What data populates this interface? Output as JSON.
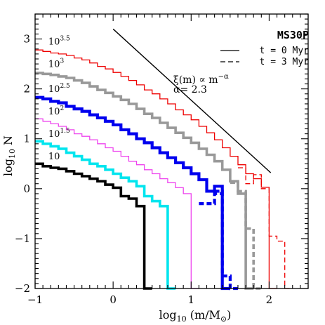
{
  "chart_data": {
    "type": "line",
    "title": "MS30P",
    "xlabel_main": "log",
    "xlabel_sub": "10",
    "xlabel_rest": " (m/M",
    "xlabel_sun": "⊙",
    "xlabel_close": ")",
    "ylabel_main": "log",
    "ylabel_sub": "10",
    "ylabel_rest": " N",
    "xlim": [
      -1,
      2.5
    ],
    "ylim": [
      -2,
      3.5
    ],
    "xticks": [
      -1,
      0,
      1,
      2
    ],
    "yticks": [
      -2,
      -1,
      0,
      1,
      2,
      3
    ],
    "xtick_labels": [
      "−1",
      "0",
      "1",
      "2"
    ],
    "ytick_labels": [
      "−2",
      "−1",
      "0",
      "1",
      "2",
      "3"
    ],
    "legend": {
      "solid_label": "t = 0 Myr",
      "dashed_label": "t = 3 Myr",
      "placement": "top-right"
    },
    "annotation": {
      "line1_xi": "ξ(m) ∝ m",
      "line1_exp": "−α",
      "line2": "α= 2.3",
      "slope_line": {
        "x": [
          0,
          2.02
        ],
        "y": [
          3.2,
          0.32
        ]
      }
    },
    "series": [
      {
        "name": "10",
        "sup": "",
        "color": "#000000",
        "width": 3.6,
        "x": [
          -1,
          -0.9,
          -0.8,
          -0.7,
          -0.6,
          -0.5,
          -0.4,
          -0.3,
          -0.2,
          -0.1,
          0,
          0.1,
          0.2,
          0.3,
          0.4
        ],
        "y": [
          0.5,
          0.45,
          0.42,
          0.4,
          0.35,
          0.3,
          0.25,
          0.2,
          0.15,
          0.08,
          0.02,
          -0.15,
          -0.2,
          -0.35,
          -2
        ]
      },
      {
        "name": "10",
        "sup": "1.5",
        "color": "#00e5ee",
        "width": 3.6,
        "x": [
          -1,
          -0.9,
          -0.8,
          -0.7,
          -0.6,
          -0.5,
          -0.4,
          -0.3,
          -0.2,
          -0.1,
          0,
          0.1,
          0.2,
          0.3,
          0.4,
          0.5,
          0.6,
          0.7
        ],
        "y": [
          0.95,
          0.9,
          0.85,
          0.8,
          0.72,
          0.65,
          0.58,
          0.5,
          0.45,
          0.38,
          0.3,
          0.22,
          0.15,
          0.05,
          -0.15,
          -0.25,
          -0.35,
          -2
        ]
      },
      {
        "name": "10",
        "sup": "2",
        "color": "#ee44ee",
        "width": 1.3,
        "x": [
          -1,
          -0.9,
          -0.8,
          -0.7,
          -0.6,
          -0.5,
          -0.4,
          -0.3,
          -0.2,
          -0.1,
          0,
          0.1,
          0.2,
          0.3,
          0.4,
          0.5,
          0.6,
          0.7,
          0.8,
          0.9,
          1.0
        ],
        "y": [
          1.4,
          1.35,
          1.3,
          1.25,
          1.18,
          1.1,
          1.05,
          0.98,
          0.9,
          0.82,
          0.75,
          0.65,
          0.55,
          0.48,
          0.38,
          0.3,
          0.2,
          0.12,
          0.02,
          -0.1,
          -2
        ]
      },
      {
        "name": "10",
        "sup": "2.5",
        "color": "#0000ee",
        "width": 4.2,
        "x": [
          -1,
          -0.9,
          -0.8,
          -0.7,
          -0.6,
          -0.5,
          -0.4,
          -0.3,
          -0.2,
          -0.1,
          0,
          0.1,
          0.2,
          0.3,
          0.4,
          0.5,
          0.6,
          0.7,
          0.8,
          0.9,
          1.0,
          1.1,
          1.2,
          1.3,
          1.4
        ],
        "y": [
          1.83,
          1.8,
          1.75,
          1.72,
          1.65,
          1.6,
          1.55,
          1.48,
          1.42,
          1.35,
          1.28,
          1.18,
          1.1,
          1.0,
          0.92,
          0.82,
          0.72,
          0.62,
          0.52,
          0.42,
          0.3,
          0.18,
          -0.05,
          0.05,
          -2
        ]
      },
      {
        "name": "10",
        "sup": "3",
        "color": "#999999",
        "width": 3.6,
        "x": [
          -1,
          -0.9,
          -0.8,
          -0.7,
          -0.6,
          -0.5,
          -0.4,
          -0.3,
          -0.2,
          -0.1,
          0,
          0.1,
          0.2,
          0.3,
          0.4,
          0.5,
          0.6,
          0.7,
          0.8,
          0.9,
          1.0,
          1.1,
          1.2,
          1.3,
          1.4,
          1.5,
          1.6,
          1.7
        ],
        "y": [
          2.32,
          2.3,
          2.28,
          2.25,
          2.22,
          2.17,
          2.12,
          2.05,
          1.98,
          1.92,
          1.85,
          1.78,
          1.7,
          1.6,
          1.5,
          1.42,
          1.32,
          1.22,
          1.12,
          1.02,
          0.92,
          0.8,
          0.68,
          0.55,
          0.38,
          0.15,
          -0.1,
          -2
        ]
      },
      {
        "name": "10",
        "sup": "3.5",
        "color": "#ee0000",
        "width": 1.3,
        "x": [
          -1,
          -0.9,
          -0.8,
          -0.7,
          -0.6,
          -0.5,
          -0.4,
          -0.3,
          -0.2,
          -0.1,
          0,
          0.1,
          0.2,
          0.3,
          0.4,
          0.5,
          0.6,
          0.7,
          0.8,
          0.9,
          1.0,
          1.1,
          1.2,
          1.3,
          1.4,
          1.5,
          1.6,
          1.7,
          1.8,
          1.9,
          2.0
        ],
        "y": [
          2.78,
          2.75,
          2.72,
          2.7,
          2.67,
          2.62,
          2.58,
          2.52,
          2.45,
          2.4,
          2.33,
          2.25,
          2.17,
          2.08,
          1.98,
          1.9,
          1.8,
          1.7,
          1.58,
          1.48,
          1.38,
          1.25,
          1.12,
          0.98,
          0.82,
          0.65,
          0.48,
          0.3,
          0.2,
          0.03,
          -2
        ]
      }
    ],
    "dashed_tails": [
      {
        "color": "#ee0000",
        "width": 1.3,
        "x": [
          1.6,
          1.7,
          1.8,
          1.9,
          2.0,
          2.1,
          2.2
        ],
        "y": [
          0.42,
          0.1,
          0.28,
          0.0,
          -0.95,
          -1.05,
          -2
        ]
      },
      {
        "color": "#999999",
        "width": 3.6,
        "x": [
          1.5,
          1.6,
          1.7,
          1.8
        ],
        "y": [
          0.12,
          -0.05,
          -0.8,
          -2
        ]
      },
      {
        "color": "#0000ee",
        "width": 4.2,
        "x": [
          1.3,
          1.4,
          1.5
        ],
        "y": [
          -0.05,
          -1.75,
          -2
        ]
      },
      {
        "color": "#0000ee",
        "width": 4.2,
        "x": [
          1.1,
          1.2,
          1.3
        ],
        "y": [
          -0.3,
          -0.3,
          -0.1
        ]
      }
    ]
  }
}
